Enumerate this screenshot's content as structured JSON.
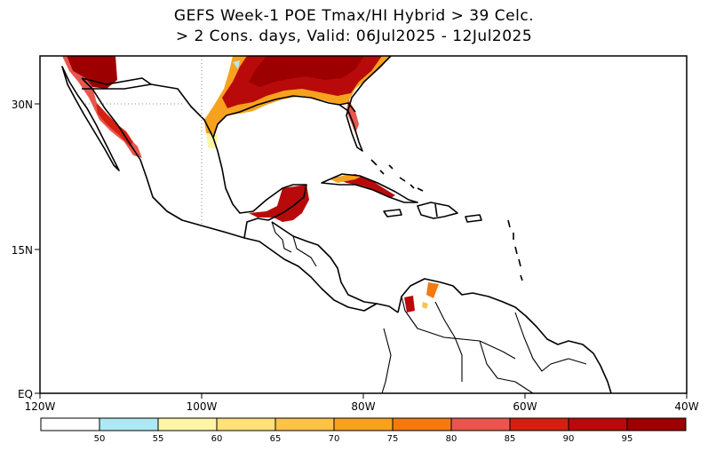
{
  "title_line1": "GEFS Week-1 POE Tmax/HI Hybrid > 39 Celc.",
  "title_line2": "> 2 Cons. days, Valid: 06Jul2025 - 12Jul2025",
  "map": {
    "lon_range": [
      -120,
      -40
    ],
    "lat_range": [
      0,
      35
    ],
    "lon_ticks": [
      {
        "value": -120,
        "label": "120W"
      },
      {
        "value": -100,
        "label": "100W"
      },
      {
        "value": -80,
        "label": "80W"
      },
      {
        "value": -60,
        "label": "60W"
      },
      {
        "value": -40,
        "label": "40W"
      }
    ],
    "lat_ticks": [
      {
        "value": 30,
        "label": "30N"
      },
      {
        "value": 15,
        "label": "15N"
      },
      {
        "value": 0,
        "label": "EQ"
      }
    ]
  },
  "colorbar": {
    "colors": [
      "#ffffff",
      "#aee8f2",
      "#fff4a8",
      "#ffe07a",
      "#fcc24a",
      "#f7a21e",
      "#f27a10",
      "#e8564e",
      "#d42010",
      "#b80a0a",
      "#9c0000"
    ],
    "labels": [
      "50",
      "55",
      "60",
      "65",
      "70",
      "75",
      "80",
      "85",
      "90",
      "95"
    ]
  }
}
